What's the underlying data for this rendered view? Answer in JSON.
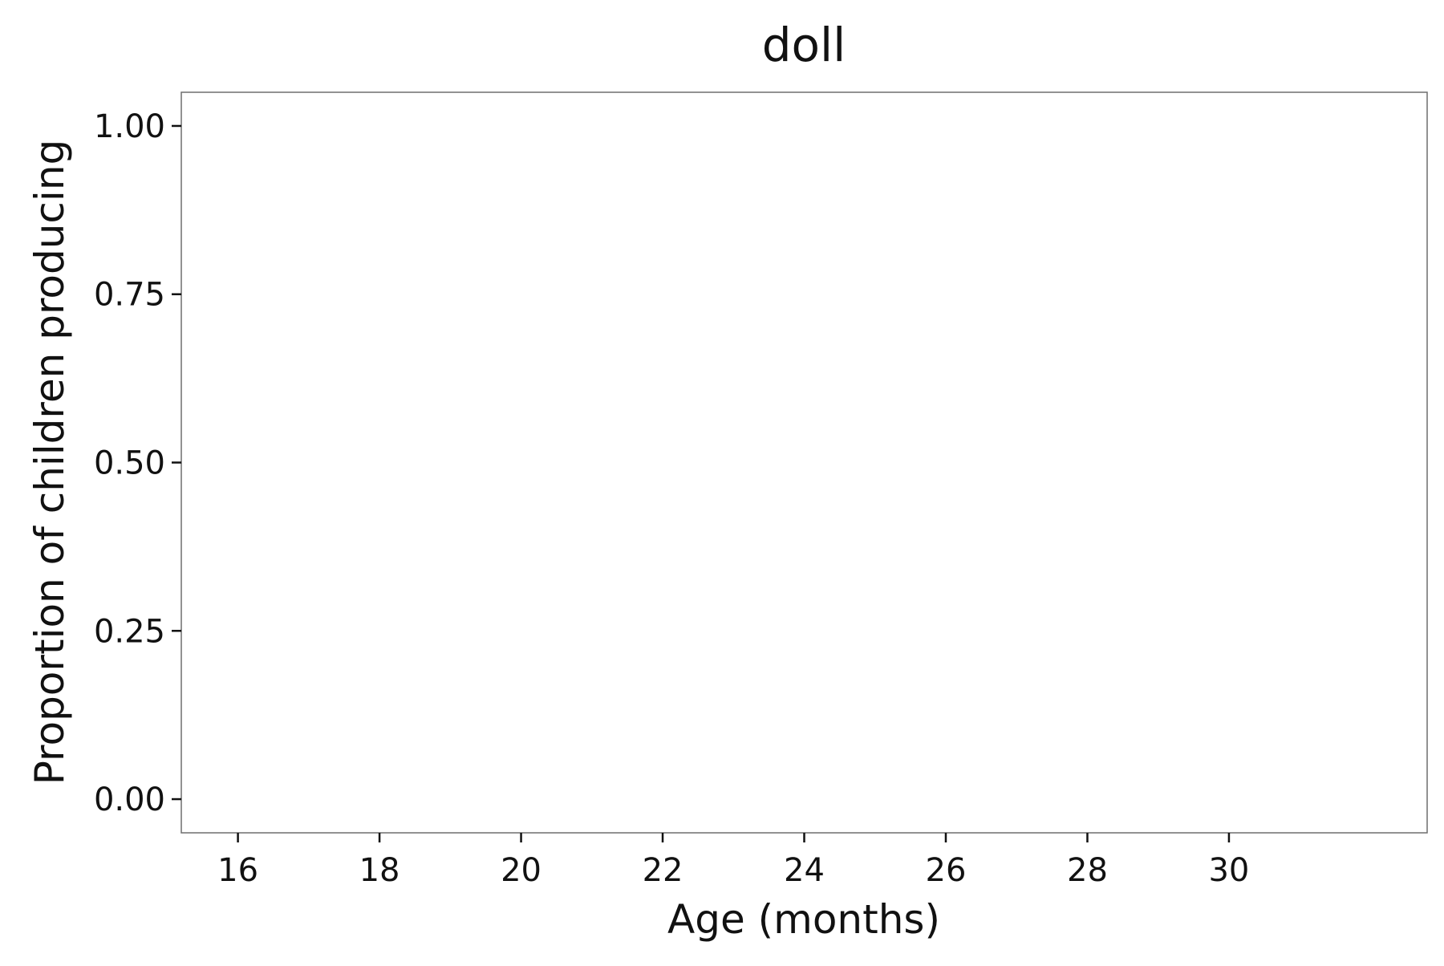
{
  "chart_data": {
    "type": "line",
    "title": "doll",
    "xlabel": "Age (months)",
    "ylabel": "Proportion of children producing",
    "xlim": [
      15.2,
      32.8
    ],
    "ylim": [
      -0.05,
      1.05
    ],
    "x_ticks": [
      16,
      18,
      20,
      22,
      24,
      26,
      28,
      30
    ],
    "x_tick_labels": [
      "16",
      "18",
      "20",
      "22",
      "24",
      "26",
      "28",
      "30"
    ],
    "y_ticks": [
      0,
      0.25,
      0.5,
      0.75,
      1
    ],
    "y_tick_labels": [
      "0.00",
      "0.25",
      "0.50",
      "0.75",
      "1.00"
    ],
    "grid": false,
    "series": []
  }
}
